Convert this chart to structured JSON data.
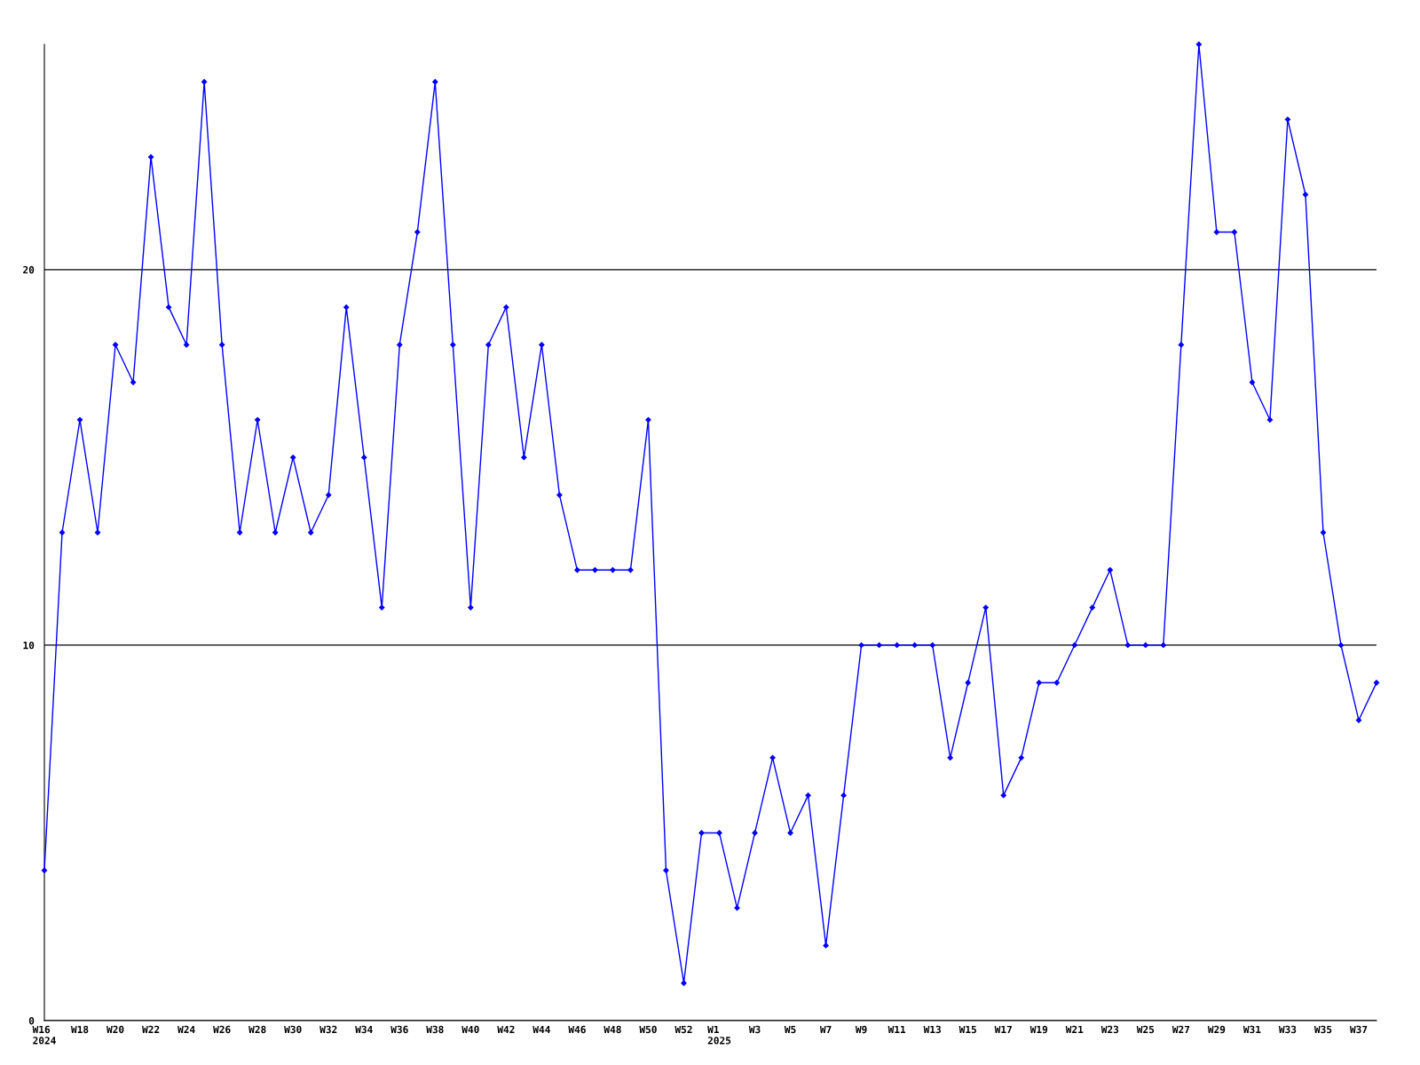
{
  "chart_data": {
    "type": "line",
    "categories": [
      "W16\n2024",
      null,
      "W18",
      null,
      "W20",
      null,
      "W22",
      null,
      "W24",
      null,
      "W26",
      null,
      "W28",
      null,
      "W30",
      null,
      "W32",
      null,
      "W34",
      null,
      "W36",
      null,
      "W38",
      null,
      "W40",
      null,
      "W42",
      null,
      "W44",
      null,
      "W46",
      null,
      "W48",
      null,
      "W50",
      null,
      "W52",
      null,
      "W1\n2025",
      null,
      "W3",
      null,
      "W5",
      null,
      "W7",
      null,
      "W9",
      null,
      "W11",
      null,
      "W13",
      null,
      "W15",
      null,
      "W17",
      null,
      "W19",
      null,
      "W21",
      null,
      "W23",
      null,
      "W25",
      null,
      "W27",
      null,
      "W29",
      null,
      "W31",
      null,
      "W33",
      null,
      "W35",
      null,
      "W37",
      null
    ],
    "series": [
      {
        "color": "#0000ff",
        "values": [
          4,
          13,
          16,
          13,
          18,
          17,
          23,
          19,
          18,
          25,
          18,
          13,
          16,
          13,
          15,
          13,
          14,
          19,
          15,
          11,
          18,
          21,
          25,
          18,
          11,
          18,
          19,
          15,
          18,
          14,
          12,
          12,
          12,
          12,
          16,
          4,
          1,
          5,
          5,
          3,
          5,
          7,
          5,
          6,
          2,
          6,
          10,
          10,
          10,
          10,
          10,
          7,
          9,
          11,
          6,
          7,
          9,
          9,
          10,
          11,
          12,
          10,
          10,
          10,
          18,
          26,
          21,
          21,
          17,
          16,
          24,
          22,
          13,
          10,
          8,
          9
        ]
      }
    ],
    "ylim": [
      0,
      26
    ],
    "yticks": [
      0,
      10,
      20
    ],
    "grid": "y",
    "marker": "diamond",
    "line_style": "solid",
    "legend": false
  }
}
